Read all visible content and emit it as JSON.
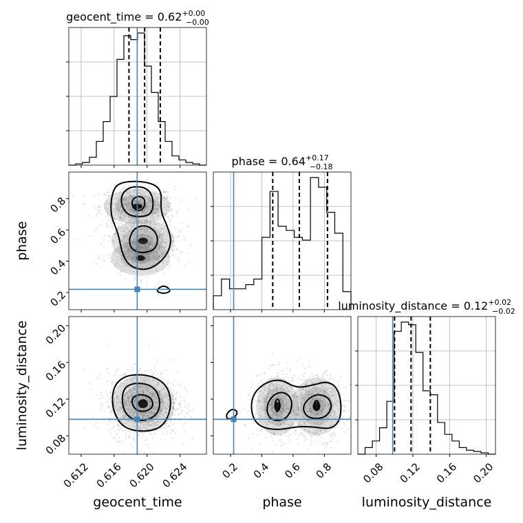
{
  "chart_data": {
    "type": "corner",
    "parameters": [
      {
        "name": "geocent_time",
        "label": "geocent_time",
        "title_prefix": "geocent_time = ",
        "median": "0.62",
        "plus": "+0.00",
        "minus": "−0.00",
        "range": [
          0.6105,
          0.6272
        ],
        "ticks": [
          0.612,
          0.616,
          0.62,
          0.624
        ],
        "tick_labels": [
          "0.612",
          "0.616",
          "0.620",
          "0.624"
        ],
        "truth": 0.6188,
        "quantiles": [
          0.6178,
          0.6197,
          0.6216
        ],
        "hist": [
          0.0,
          0.01,
          0.02,
          0.06,
          0.18,
          0.33,
          0.52,
          0.8,
          0.98,
          0.95,
          1.0,
          0.75,
          0.55,
          0.33,
          0.18,
          0.07,
          0.04,
          0.02,
          0.01,
          0.0
        ]
      },
      {
        "name": "phase",
        "label": "phase",
        "title_prefix": "phase = ",
        "median": "0.64",
        "plus": "+0.17",
        "minus": "−0.18",
        "range": [
          0.09,
          0.97
        ],
        "ticks": [
          0.2,
          0.4,
          0.6,
          0.8
        ],
        "tick_labels": [
          "0.2",
          "0.4",
          "0.6",
          "0.8"
        ],
        "truth": 0.22,
        "quantiles": [
          0.47,
          0.64,
          0.82
        ],
        "hist": [
          0.1,
          0.22,
          0.15,
          0.15,
          0.18,
          0.22,
          0.52,
          0.85,
          0.6,
          0.57,
          0.52,
          0.5,
          0.95,
          0.88,
          0.7,
          0.55,
          0.13
        ]
      },
      {
        "name": "luminosity_distance",
        "label": "luminosity_distance",
        "title_prefix": "luminosity_distance = ",
        "median": "0.12",
        "plus": "+0.02",
        "minus": "−0.02",
        "range": [
          0.06,
          0.21
        ],
        "ticks": [
          0.08,
          0.12,
          0.16,
          0.2
        ],
        "tick_labels": [
          "0.08",
          "0.12",
          "0.16",
          "0.20"
        ],
        "truth": 0.098,
        "quantiles": [
          0.1,
          0.118,
          0.139
        ],
        "hist": [
          0.0,
          0.05,
          0.1,
          0.2,
          0.4,
          0.93,
          1.0,
          0.98,
          0.77,
          0.48,
          0.45,
          0.24,
          0.15,
          0.1,
          0.05,
          0.03,
          0.02,
          0.01,
          0.0
        ]
      }
    ],
    "pairs": [
      {
        "x": "geocent_time",
        "y": "phase",
        "ytick_labels": [
          "0.2",
          "0.4",
          "0.6",
          "0.8"
        ],
        "cloud": [
          {
            "x": 0.6188,
            "y": 0.75,
            "sx": 0.0018,
            "sy": 0.05,
            "w": 0.5
          },
          {
            "x": 0.6195,
            "y": 0.53,
            "sx": 0.0017,
            "sy": 0.06,
            "w": 0.35
          },
          {
            "x": 0.6192,
            "y": 0.42,
            "sx": 0.0016,
            "sy": 0.05,
            "w": 0.15
          }
        ],
        "contours": [
          [
            [
              0.6158,
              0.86
            ],
            [
              0.617,
              0.91
            ],
            [
              0.62,
              0.91
            ],
            [
              0.6218,
              0.86
            ],
            [
              0.6216,
              0.72
            ],
            [
              0.6225,
              0.62
            ],
            [
              0.623,
              0.52
            ],
            [
              0.6222,
              0.42
            ],
            [
              0.6202,
              0.34
            ],
            [
              0.618,
              0.36
            ],
            [
              0.617,
              0.44
            ],
            [
              0.6165,
              0.58
            ],
            [
              0.6155,
              0.7
            ]
          ],
          [
            [
              0.617,
              0.84
            ],
            [
              0.6182,
              0.88
            ],
            [
              0.62,
              0.87
            ],
            [
              0.6208,
              0.8
            ],
            [
              0.6206,
              0.7
            ],
            [
              0.619,
              0.68
            ],
            [
              0.6175,
              0.7
            ],
            [
              0.6168,
              0.77
            ]
          ],
          [
            [
              0.6178,
              0.55
            ],
            [
              0.6186,
              0.62
            ],
            [
              0.6202,
              0.63
            ],
            [
              0.6214,
              0.56
            ],
            [
              0.621,
              0.47
            ],
            [
              0.6192,
              0.45
            ],
            [
              0.618,
              0.48
            ]
          ],
          [
            [
              0.618,
              0.78
            ],
            [
              0.6188,
              0.82
            ],
            [
              0.6198,
              0.8
            ],
            [
              0.6196,
              0.73
            ],
            [
              0.6186,
              0.72
            ]
          ],
          [
            [
              0.621,
              0.21
            ],
            [
              0.622,
              0.25
            ],
            [
              0.623,
              0.21
            ],
            [
              0.622,
              0.19
            ]
          ]
        ]
      },
      {
        "x": "geocent_time",
        "y": "luminosity_distance",
        "ytick_labels": [
          "0.08",
          "0.12",
          "0.16",
          "0.20"
        ],
        "cloud": [
          {
            "x": 0.6195,
            "y": 0.115,
            "sx": 0.0017,
            "sy": 0.014,
            "w": 1.0
          }
        ],
        "contours": [
          [
            [
              0.6162,
              0.138
            ],
            [
              0.6178,
              0.147
            ],
            [
              0.6205,
              0.146
            ],
            [
              0.6225,
              0.135
            ],
            [
              0.623,
              0.112
            ],
            [
              0.622,
              0.09
            ],
            [
              0.6198,
              0.084
            ],
            [
              0.6172,
              0.088
            ],
            [
              0.616,
              0.104
            ],
            [
              0.6157,
              0.122
            ]
          ],
          [
            [
              0.617,
              0.13
            ],
            [
              0.6182,
              0.138
            ],
            [
              0.6205,
              0.136
            ],
            [
              0.6216,
              0.122
            ],
            [
              0.6214,
              0.104
            ],
            [
              0.6198,
              0.096
            ],
            [
              0.618,
              0.098
            ],
            [
              0.617,
              0.11
            ]
          ],
          [
            [
              0.618,
              0.12
            ],
            [
              0.619,
              0.126
            ],
            [
              0.6205,
              0.122
            ],
            [
              0.6208,
              0.112
            ],
            [
              0.6198,
              0.106
            ],
            [
              0.6185,
              0.108
            ]
          ]
        ]
      },
      {
        "x": "phase",
        "y": "luminosity_distance",
        "ytick_labels": [],
        "cloud": [
          {
            "x": 0.5,
            "y": 0.112,
            "sx": 0.06,
            "sy": 0.014,
            "w": 0.5
          },
          {
            "x": 0.75,
            "y": 0.112,
            "sx": 0.07,
            "sy": 0.014,
            "w": 0.5
          }
        ],
        "contours": [
          [
            [
              0.34,
              0.125
            ],
            [
              0.42,
              0.138
            ],
            [
              0.52,
              0.142
            ],
            [
              0.62,
              0.132
            ],
            [
              0.72,
              0.135
            ],
            [
              0.83,
              0.14
            ],
            [
              0.9,
              0.128
            ],
            [
              0.91,
              0.1
            ],
            [
              0.85,
              0.087
            ],
            [
              0.72,
              0.09
            ],
            [
              0.62,
              0.09
            ],
            [
              0.5,
              0.086
            ],
            [
              0.38,
              0.09
            ],
            [
              0.33,
              0.105
            ]
          ],
          [
            [
              0.44,
              0.118
            ],
            [
              0.5,
              0.128
            ],
            [
              0.57,
              0.126
            ],
            [
              0.6,
              0.114
            ],
            [
              0.56,
              0.098
            ],
            [
              0.47,
              0.096
            ],
            [
              0.43,
              0.105
            ]
          ],
          [
            [
              0.68,
              0.118
            ],
            [
              0.75,
              0.126
            ],
            [
              0.83,
              0.122
            ],
            [
              0.85,
              0.11
            ],
            [
              0.8,
              0.099
            ],
            [
              0.7,
              0.099
            ],
            [
              0.66,
              0.108
            ]
          ],
          [
            [
              0.48,
              0.114
            ],
            [
              0.5,
              0.122
            ],
            [
              0.52,
              0.114
            ],
            [
              0.5,
              0.104
            ]
          ],
          [
            [
              0.73,
              0.114
            ],
            [
              0.75,
              0.12
            ],
            [
              0.77,
              0.114
            ],
            [
              0.75,
              0.106
            ]
          ],
          [
            [
              0.17,
              0.103
            ],
            [
              0.21,
              0.11
            ],
            [
              0.25,
              0.106
            ],
            [
              0.22,
              0.099
            ],
            [
              0.18,
              0.098
            ]
          ]
        ]
      }
    ]
  }
}
